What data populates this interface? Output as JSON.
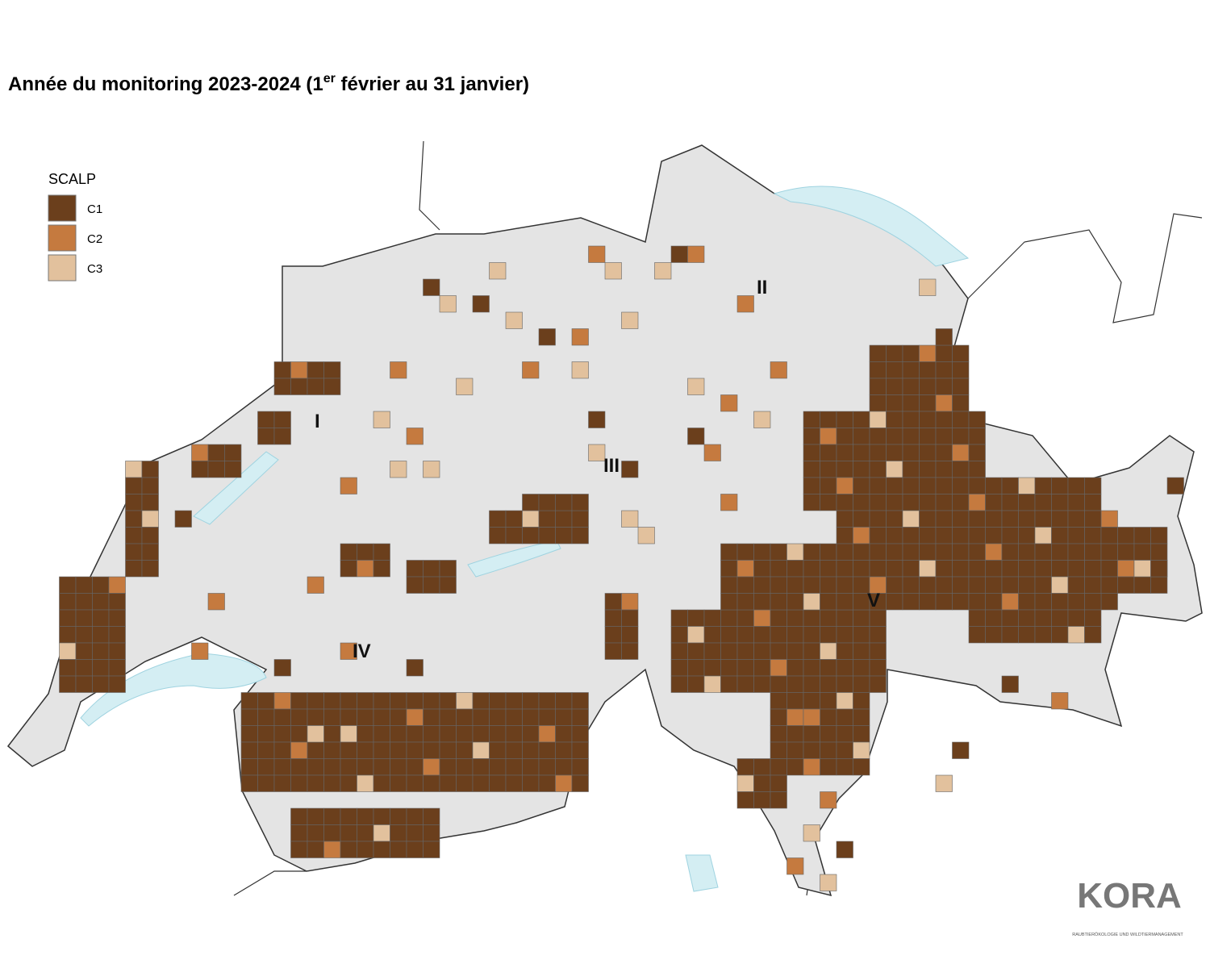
{
  "title": {
    "prefix": "Année du monitoring 2023-2024 (1",
    "superscript": "er",
    "suffix": " février au 31 janvier)"
  },
  "legend": {
    "title": "SCALP",
    "items": [
      {
        "label": "C1",
        "color": "#6b3f1c"
      },
      {
        "label": "C2",
        "color": "#c57a3f"
      },
      {
        "label": "C3",
        "color": "#e2c19d"
      }
    ]
  },
  "regions": [
    "I",
    "II",
    "III",
    "IV",
    "V"
  ],
  "logo": {
    "name": "KORA",
    "tagline": "RAUBTIERÖKOLOGIE UND WILDTIERMANAGEMENT"
  }
}
